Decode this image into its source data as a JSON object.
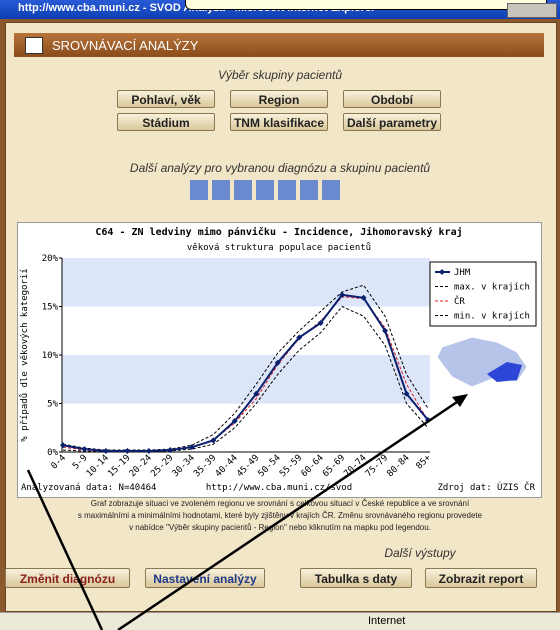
{
  "window": {
    "title": "http://www.cba.muni.cz - SVOD Analýza - Microsoft Internet Explorer",
    "status": "Internet"
  },
  "app": {
    "header": "SROVNÁVACÍ ANALÝZY"
  },
  "groups": {
    "title": "Výběr skupiny pacientů",
    "buttons": [
      "Pohlaví, věk",
      "Region",
      "Období",
      "Stádium",
      "TNM klasifikace",
      "Další parametry"
    ]
  },
  "analyses": {
    "title": "Další analýzy pro vybranou diagnózu a skupinu pacientů"
  },
  "chart_data": {
    "type": "line",
    "title": "C64 - ZN ledviny mimo pánvičku - Incidence, Jihomoravský kraj",
    "subtitle": "věková struktura populace pacientů",
    "y_label": "% případů dle věkových kategorií",
    "categories": [
      "0-4",
      "5-9",
      "10-14",
      "15-19",
      "20-24",
      "25-29",
      "30-34",
      "35-39",
      "40-44",
      "45-49",
      "50-54",
      "55-59",
      "60-64",
      "65-69",
      "70-74",
      "75-79",
      "80-84",
      "85+"
    ],
    "series": [
      {
        "name": "JHM",
        "color": "#0a1f6e",
        "style": "solid",
        "marker": "diamond",
        "values": [
          0.7,
          0.3,
          0.1,
          0.1,
          0.1,
          0.2,
          0.5,
          1.2,
          3.2,
          6,
          9.2,
          11.8,
          13.3,
          16.2,
          15.9,
          12.5,
          6,
          3.3
        ]
      },
      {
        "name": "max. v krajích",
        "color": "#000000",
        "style": "dashed",
        "values": [
          0.8,
          0.4,
          0.2,
          0.2,
          0.2,
          0.3,
          0.7,
          1.8,
          4,
          7,
          10.2,
          12.5,
          14.5,
          16.5,
          17.2,
          14,
          8,
          4.5
        ]
      },
      {
        "name": "ČR",
        "color": "#e02020",
        "style": "dashed",
        "values": [
          0.5,
          0.2,
          0.1,
          0.1,
          0.1,
          0.2,
          0.5,
          1.2,
          3,
          5.5,
          9,
          11.7,
          13.5,
          16,
          15.8,
          12.8,
          7,
          3.2
        ]
      },
      {
        "name": "min. v krajích",
        "color": "#000000",
        "style": "dashed",
        "values": [
          0.2,
          0.1,
          0,
          0,
          0,
          0.1,
          0.3,
          0.8,
          2.5,
          5,
          8,
          10.5,
          12.3,
          15,
          14,
          11,
          5,
          2.5
        ]
      }
    ],
    "ylim": [
      0,
      20
    ],
    "yticks": [
      {
        "value": 0,
        "label": "0%"
      },
      {
        "value": 5,
        "label": "5%"
      },
      {
        "value": 10,
        "label": "10%"
      },
      {
        "value": 15,
        "label": "15%"
      },
      {
        "value": 20,
        "label": "20%"
      }
    ],
    "band_colors": [
      "#ffffff",
      "#dce6f8"
    ],
    "legend": "upper right",
    "notes": [
      "Analyzovaná data: N=40464",
      "http://www.cba.muni.cz/svod",
      "Zdroj dat: ÚZIS ČR"
    ]
  },
  "description": [
    "Graf zobrazuje situaci ve zvoleném regionu ve srovnání s celkovou situací v České republice a ve srovnání",
    "s maximálními a minimálními hodnotami, které byly zjištěny v krajích ČR. Změnu srovnávaného regionu provedete",
    "v nabídce \"Výběr skupiny pacientů - Region\" nebo kliknutím na mapku pod legendou."
  ],
  "outputs": {
    "title": "Další výstupy",
    "buttons": [
      "Změnit diagnózu",
      "Nastavení analýzy",
      "Tabulka s daty",
      "Zobrazit report"
    ]
  }
}
